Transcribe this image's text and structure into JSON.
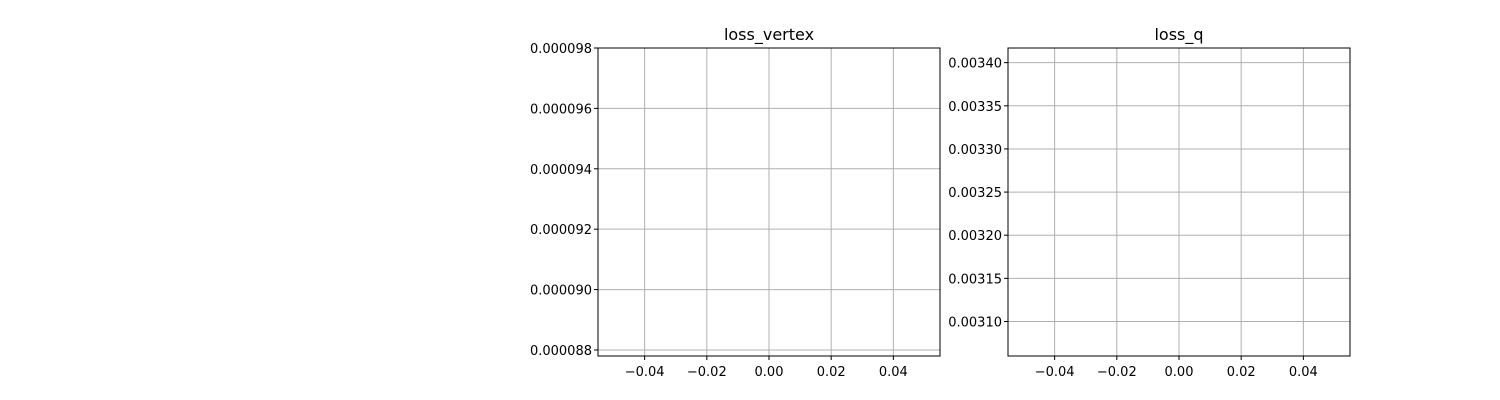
{
  "colors": {
    "grid": "#b0b0b0",
    "axes": "#000000",
    "background": "#ffffff"
  },
  "chart_data": [
    {
      "type": "line",
      "title": "loss_vertex",
      "xlabel": "",
      "ylabel": "",
      "grid": true,
      "series": [],
      "xlim": [
        -0.055,
        0.055
      ],
      "ylim": [
        8.78e-05,
        9.8e-05
      ],
      "xticks": [
        -0.04,
        -0.02,
        0.0,
        0.02,
        0.04
      ],
      "xtick_labels": [
        "−0.04",
        "−0.02",
        "0.00",
        "0.02",
        "0.04"
      ],
      "yticks": [
        8.8e-05,
        9e-05,
        9.2e-05,
        9.4e-05,
        9.6e-05,
        9.8e-05
      ],
      "ytick_labels": [
        "0.000088",
        "0.000090",
        "0.000092",
        "0.000094",
        "0.000096",
        "0.000098"
      ]
    },
    {
      "type": "line",
      "title": "loss_q",
      "xlabel": "",
      "ylabel": "",
      "grid": true,
      "series": [],
      "xlim": [
        -0.055,
        0.055
      ],
      "ylim": [
        0.00306,
        0.003417
      ],
      "xticks": [
        -0.04,
        -0.02,
        0.0,
        0.02,
        0.04
      ],
      "xtick_labels": [
        "−0.04",
        "−0.02",
        "0.00",
        "0.02",
        "0.04"
      ],
      "yticks": [
        0.0031,
        0.00315,
        0.0032,
        0.00325,
        0.0033,
        0.00335,
        0.0034
      ],
      "ytick_labels": [
        "0.00310",
        "0.00315",
        "0.00320",
        "0.00325",
        "0.00330",
        "0.00335",
        "0.00340"
      ]
    }
  ]
}
